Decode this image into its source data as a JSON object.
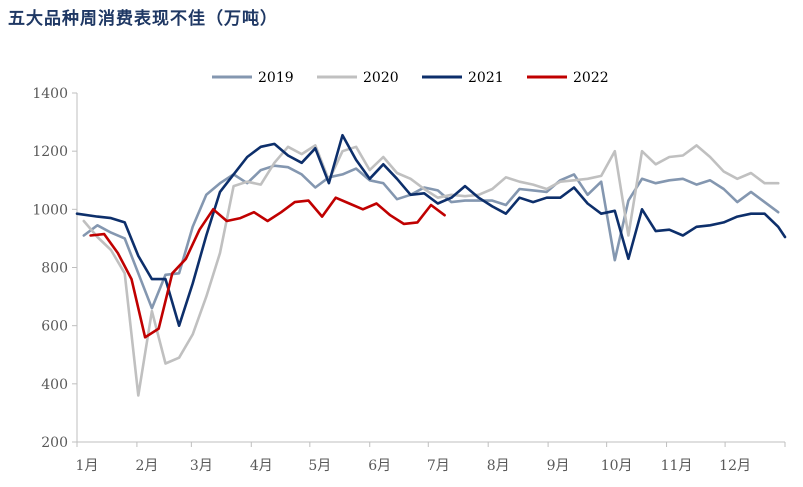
{
  "chart_data": {
    "type": "line",
    "title": "五大品种周消费表现不佳（万吨）",
    "xlabel": "",
    "ylabel": "",
    "ylim": [
      200,
      1400
    ],
    "y_ticks": [
      200,
      400,
      600,
      800,
      1000,
      1200,
      1400
    ],
    "x_range_weeks": [
      1,
      53
    ],
    "x_tick_labels": [
      "1月",
      "2月",
      "3月",
      "4月",
      "5月",
      "6月",
      "7月",
      "8月",
      "9月",
      "10月",
      "11月",
      "12月"
    ],
    "x_tick_weeks": [
      1,
      5.4,
      9.4,
      13.8,
      18.1,
      22.5,
      26.8,
      31.2,
      35.6,
      39.9,
      44.3,
      48.6
    ],
    "grid": false,
    "legend_position": "top",
    "series": [
      {
        "name": "2019",
        "color": "#8497b0",
        "points": [
          [
            1.5,
            910
          ],
          [
            2.5,
            945
          ],
          [
            3.5,
            920
          ],
          [
            4.5,
            900
          ],
          [
            5.5,
            780
          ],
          [
            6.5,
            660
          ],
          [
            7.5,
            775
          ],
          [
            8.5,
            780
          ],
          [
            9.5,
            940
          ],
          [
            10.5,
            1050
          ],
          [
            11.5,
            1090
          ],
          [
            12.5,
            1120
          ],
          [
            13.5,
            1090
          ],
          [
            14.5,
            1135
          ],
          [
            15.5,
            1150
          ],
          [
            16.5,
            1145
          ],
          [
            17.5,
            1120
          ],
          [
            18.5,
            1075
          ],
          [
            19.5,
            1110
          ],
          [
            20.5,
            1120
          ],
          [
            21.5,
            1140
          ],
          [
            22.5,
            1100
          ],
          [
            23.5,
            1090
          ],
          [
            24.5,
            1035
          ],
          [
            25.5,
            1050
          ],
          [
            26.5,
            1075
          ],
          [
            27.5,
            1065
          ],
          [
            28.5,
            1025
          ],
          [
            29.5,
            1030
          ],
          [
            30.5,
            1030
          ],
          [
            31.5,
            1030
          ],
          [
            32.5,
            1015
          ],
          [
            33.5,
            1070
          ],
          [
            34.5,
            1065
          ],
          [
            35.5,
            1060
          ],
          [
            36.5,
            1100
          ],
          [
            37.5,
            1120
          ],
          [
            38.5,
            1050
          ],
          [
            39.5,
            1095
          ],
          [
            40.5,
            825
          ],
          [
            41.5,
            1030
          ],
          [
            42.5,
            1105
          ],
          [
            43.5,
            1090
          ],
          [
            44.5,
            1100
          ],
          [
            45.5,
            1105
          ],
          [
            46.5,
            1085
          ],
          [
            47.5,
            1100
          ],
          [
            48.5,
            1070
          ],
          [
            49.5,
            1025
          ],
          [
            50.5,
            1060
          ],
          [
            51.5,
            1025
          ],
          [
            52.5,
            990
          ]
        ]
      },
      {
        "name": "2020",
        "color": "#c0c0c0",
        "points": [
          [
            1.5,
            960
          ],
          [
            2.5,
            905
          ],
          [
            3.5,
            860
          ],
          [
            4.5,
            780
          ],
          [
            5.5,
            360
          ],
          [
            6.5,
            650
          ],
          [
            7.5,
            470
          ],
          [
            8.5,
            490
          ],
          [
            9.5,
            570
          ],
          [
            10.5,
            700
          ],
          [
            11.5,
            850
          ],
          [
            12.5,
            1080
          ],
          [
            13.5,
            1095
          ],
          [
            14.5,
            1085
          ],
          [
            15.5,
            1160
          ],
          [
            16.5,
            1215
          ],
          [
            17.5,
            1190
          ],
          [
            18.5,
            1220
          ],
          [
            19.5,
            1100
          ],
          [
            20.5,
            1200
          ],
          [
            21.5,
            1215
          ],
          [
            22.5,
            1135
          ],
          [
            23.5,
            1180
          ],
          [
            24.5,
            1125
          ],
          [
            25.5,
            1105
          ],
          [
            26.5,
            1070
          ],
          [
            27.5,
            1040
          ],
          [
            28.5,
            1050
          ],
          [
            29.5,
            1045
          ],
          [
            30.5,
            1050
          ],
          [
            31.5,
            1070
          ],
          [
            32.5,
            1110
          ],
          [
            33.5,
            1095
          ],
          [
            34.5,
            1085
          ],
          [
            35.5,
            1070
          ],
          [
            36.5,
            1095
          ],
          [
            37.5,
            1100
          ],
          [
            38.5,
            1105
          ],
          [
            39.5,
            1115
          ],
          [
            40.5,
            1200
          ],
          [
            41.5,
            910
          ],
          [
            42.5,
            1200
          ],
          [
            43.5,
            1155
          ],
          [
            44.5,
            1180
          ],
          [
            45.5,
            1185
          ],
          [
            46.5,
            1220
          ],
          [
            47.5,
            1180
          ],
          [
            48.5,
            1130
          ],
          [
            49.5,
            1105
          ],
          [
            50.5,
            1125
          ],
          [
            51.5,
            1090
          ],
          [
            52.5,
            1090
          ]
        ]
      },
      {
        "name": "2021",
        "color": "#0d2f6b",
        "points": [
          [
            1,
            985
          ],
          [
            2.5,
            975
          ],
          [
            3.5,
            970
          ],
          [
            4.5,
            955
          ],
          [
            5.5,
            840
          ],
          [
            6.5,
            760
          ],
          [
            7.5,
            760
          ],
          [
            8.5,
            600
          ],
          [
            9.5,
            745
          ],
          [
            10.5,
            910
          ],
          [
            11.5,
            1060
          ],
          [
            12.5,
            1120
          ],
          [
            13.5,
            1180
          ],
          [
            14.5,
            1215
          ],
          [
            15.5,
            1225
          ],
          [
            16.5,
            1185
          ],
          [
            17.5,
            1160
          ],
          [
            18.5,
            1210
          ],
          [
            19.5,
            1090
          ],
          [
            20.5,
            1255
          ],
          [
            21.5,
            1170
          ],
          [
            22.5,
            1105
          ],
          [
            23.5,
            1155
          ],
          [
            24.5,
            1105
          ],
          [
            25.5,
            1050
          ],
          [
            26.5,
            1055
          ],
          [
            27.5,
            1020
          ],
          [
            28.5,
            1040
          ],
          [
            29.5,
            1080
          ],
          [
            30.5,
            1040
          ],
          [
            31.5,
            1010
          ],
          [
            32.5,
            985
          ],
          [
            33.5,
            1040
          ],
          [
            34.5,
            1025
          ],
          [
            35.5,
            1040
          ],
          [
            36.5,
            1040
          ],
          [
            37.5,
            1075
          ],
          [
            38.5,
            1020
          ],
          [
            39.5,
            985
          ],
          [
            40.5,
            995
          ],
          [
            41.5,
            830
          ],
          [
            42.5,
            1000
          ],
          [
            43.5,
            925
          ],
          [
            44.5,
            930
          ],
          [
            45.5,
            910
          ],
          [
            46.5,
            940
          ],
          [
            47.5,
            945
          ],
          [
            48.5,
            955
          ],
          [
            49.5,
            975
          ],
          [
            50.5,
            985
          ],
          [
            51.5,
            985
          ],
          [
            52.5,
            940
          ],
          [
            53,
            905
          ]
        ]
      },
      {
        "name": "2022",
        "color": "#c00000",
        "points": [
          [
            2,
            910
          ],
          [
            3,
            915
          ],
          [
            4,
            850
          ],
          [
            5,
            760
          ],
          [
            6,
            560
          ],
          [
            7,
            590
          ],
          [
            8,
            780
          ],
          [
            9,
            830
          ],
          [
            10,
            930
          ],
          [
            11,
            1000
          ],
          [
            12,
            960
          ],
          [
            13,
            970
          ],
          [
            14,
            990
          ],
          [
            15,
            960
          ],
          [
            16,
            990
          ],
          [
            17,
            1025
          ],
          [
            18,
            1030
          ],
          [
            19,
            975
          ],
          [
            20,
            1040
          ],
          [
            21,
            1020
          ],
          [
            22,
            1000
          ],
          [
            23,
            1020
          ],
          [
            24,
            980
          ],
          [
            25,
            950
          ],
          [
            26,
            955
          ],
          [
            27,
            1015
          ],
          [
            28,
            980
          ]
        ]
      }
    ]
  }
}
